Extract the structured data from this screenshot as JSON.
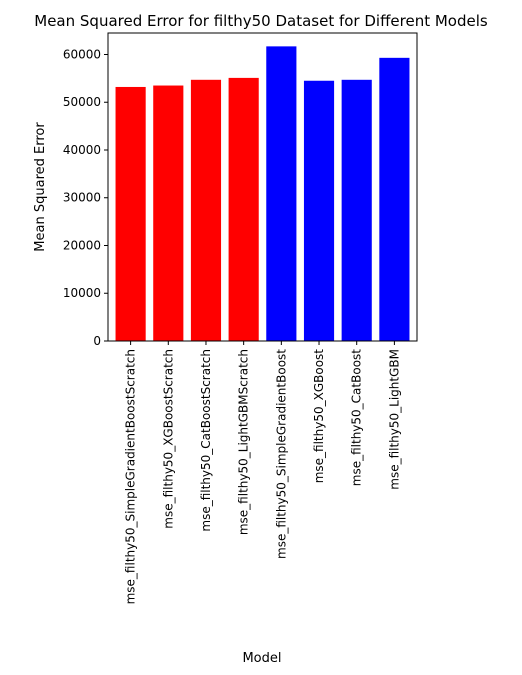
{
  "chart_data": {
    "type": "bar",
    "title": "Mean Squared Error for filthy50 Dataset for Different Models",
    "xlabel": "Model",
    "ylabel": "Mean Squared Error",
    "ylim": [
      0,
      64500
    ],
    "yticks": [
      0,
      10000,
      20000,
      30000,
      40000,
      50000,
      60000
    ],
    "ytick_labels": [
      "0",
      "10000",
      "20000",
      "30000",
      "40000",
      "50000",
      "60000"
    ],
    "grid": false,
    "legend": "none",
    "categories": [
      "mse_filthy50_SimpleGradientBoostScratch",
      "mse_filthy50_XGBoostScratch",
      "mse_filthy50_CatBoostScratch",
      "mse_filthy50_LightGBMScratch",
      "mse_filthy50_SimpleGradientBoost",
      "mse_filthy50_XGBoost",
      "mse_filthy50_CatBoost",
      "mse_filthy50_LightGBM"
    ],
    "values": [
      53200,
      53500,
      54700,
      55100,
      61700,
      54500,
      54700,
      59300
    ],
    "bar_colors": [
      "#ff0000",
      "#ff0000",
      "#ff0000",
      "#ff0000",
      "#0000ff",
      "#0000ff",
      "#0000ff",
      "#0000ff"
    ]
  }
}
